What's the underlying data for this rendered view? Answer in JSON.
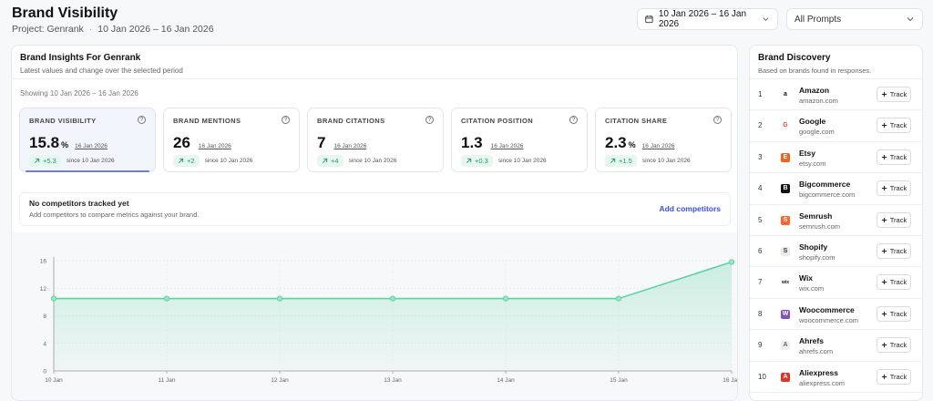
{
  "header": {
    "title": "Brand Visibility",
    "project": "Project: Genrank",
    "separator": "·",
    "period": "10 Jan 2026 – 16 Jan 2026",
    "date_range": "10 Jan 2026 – 16 Jan 2026",
    "prompts_filter": "All Prompts"
  },
  "insights": {
    "title": "Brand Insights For Genrank",
    "description": "Latest values and change over the selected period",
    "showing": "Showing 10 Jan 2026 – 16 Jan 2026",
    "metrics": [
      {
        "label": "BRAND VISIBILITY",
        "value": "15.8",
        "unit": "%",
        "date": "16 Jan 2026",
        "delta": "+5.3",
        "since": "since 10 Jan 2026"
      },
      {
        "label": "BRAND MENTIONS",
        "value": "26",
        "unit": "",
        "date": "16 Jan 2026",
        "delta": "+2",
        "since": "since 10 Jan 2026"
      },
      {
        "label": "BRAND CITATIONS",
        "value": "7",
        "unit": "",
        "date": "16 Jan 2026",
        "delta": "+4",
        "since": "since 10 Jan 2026"
      },
      {
        "label": "CITATION POSITION",
        "value": "1.3",
        "unit": "",
        "date": "16 Jan 2026",
        "delta": "+0.3",
        "since": "since 10 Jan 2026"
      },
      {
        "label": "CITATION SHARE",
        "value": "2.3",
        "unit": "%",
        "date": "16 Jan 2026",
        "delta": "+1.5",
        "since": "since 10 Jan 2026"
      }
    ],
    "competitors": {
      "title": "No competitors tracked yet",
      "description": "Add competitors to compare metrics against your brand.",
      "action": "Add competitors"
    }
  },
  "chart_data": {
    "type": "area",
    "categories": [
      "10 Jan",
      "11 Jan",
      "12 Jan",
      "13 Jan",
      "14 Jan",
      "15 Jan",
      "16 Jan"
    ],
    "values": [
      10.5,
      10.5,
      10.5,
      10.5,
      10.5,
      10.5,
      15.8
    ],
    "yticks": [
      0,
      4,
      8,
      12,
      16
    ],
    "ylim": [
      0,
      16
    ],
    "grid": true,
    "color": "#5dd3a3"
  },
  "discovery": {
    "title": "Brand Discovery",
    "description": "Based on brands found in responses.",
    "track_label": "Track",
    "brands": [
      {
        "rank": "1",
        "name": "Amazon",
        "domain": "amazon.com",
        "logo": "a",
        "color": "#111111",
        "bg": "#ffffff"
      },
      {
        "rank": "2",
        "name": "Google",
        "domain": "google.com",
        "logo": "G",
        "color": "#ea4335",
        "bg": "#ffffff"
      },
      {
        "rank": "3",
        "name": "Etsy",
        "domain": "etsy.com",
        "logo": "E",
        "color": "#ffffff",
        "bg": "#f1641e"
      },
      {
        "rank": "4",
        "name": "Bigcommerce",
        "domain": "bigcommerce.com",
        "logo": "B",
        "color": "#ffffff",
        "bg": "#121118"
      },
      {
        "rank": "5",
        "name": "Semrush",
        "domain": "semrush.com",
        "logo": "S",
        "color": "#ffffff",
        "bg": "#ff642d"
      },
      {
        "rank": "6",
        "name": "Shopify",
        "domain": "shopify.com",
        "logo": "S",
        "color": "#333333",
        "bg": "#e9ece6"
      },
      {
        "rank": "7",
        "name": "Wix",
        "domain": "wix.com",
        "logo": "wix",
        "color": "#111111",
        "bg": "#ffffff"
      },
      {
        "rank": "8",
        "name": "Woocommerce",
        "domain": "woocommerce.com",
        "logo": "W",
        "color": "#ffffff",
        "bg": "#7f54b3"
      },
      {
        "rank": "9",
        "name": "Ahrefs",
        "domain": "ahrefs.com",
        "logo": "A",
        "color": "#666666",
        "bg": "#eeeeee"
      },
      {
        "rank": "10",
        "name": "Aliexpress",
        "domain": "aliexpress.com",
        "logo": "A",
        "color": "#ffffff",
        "bg": "#e43225"
      }
    ]
  }
}
